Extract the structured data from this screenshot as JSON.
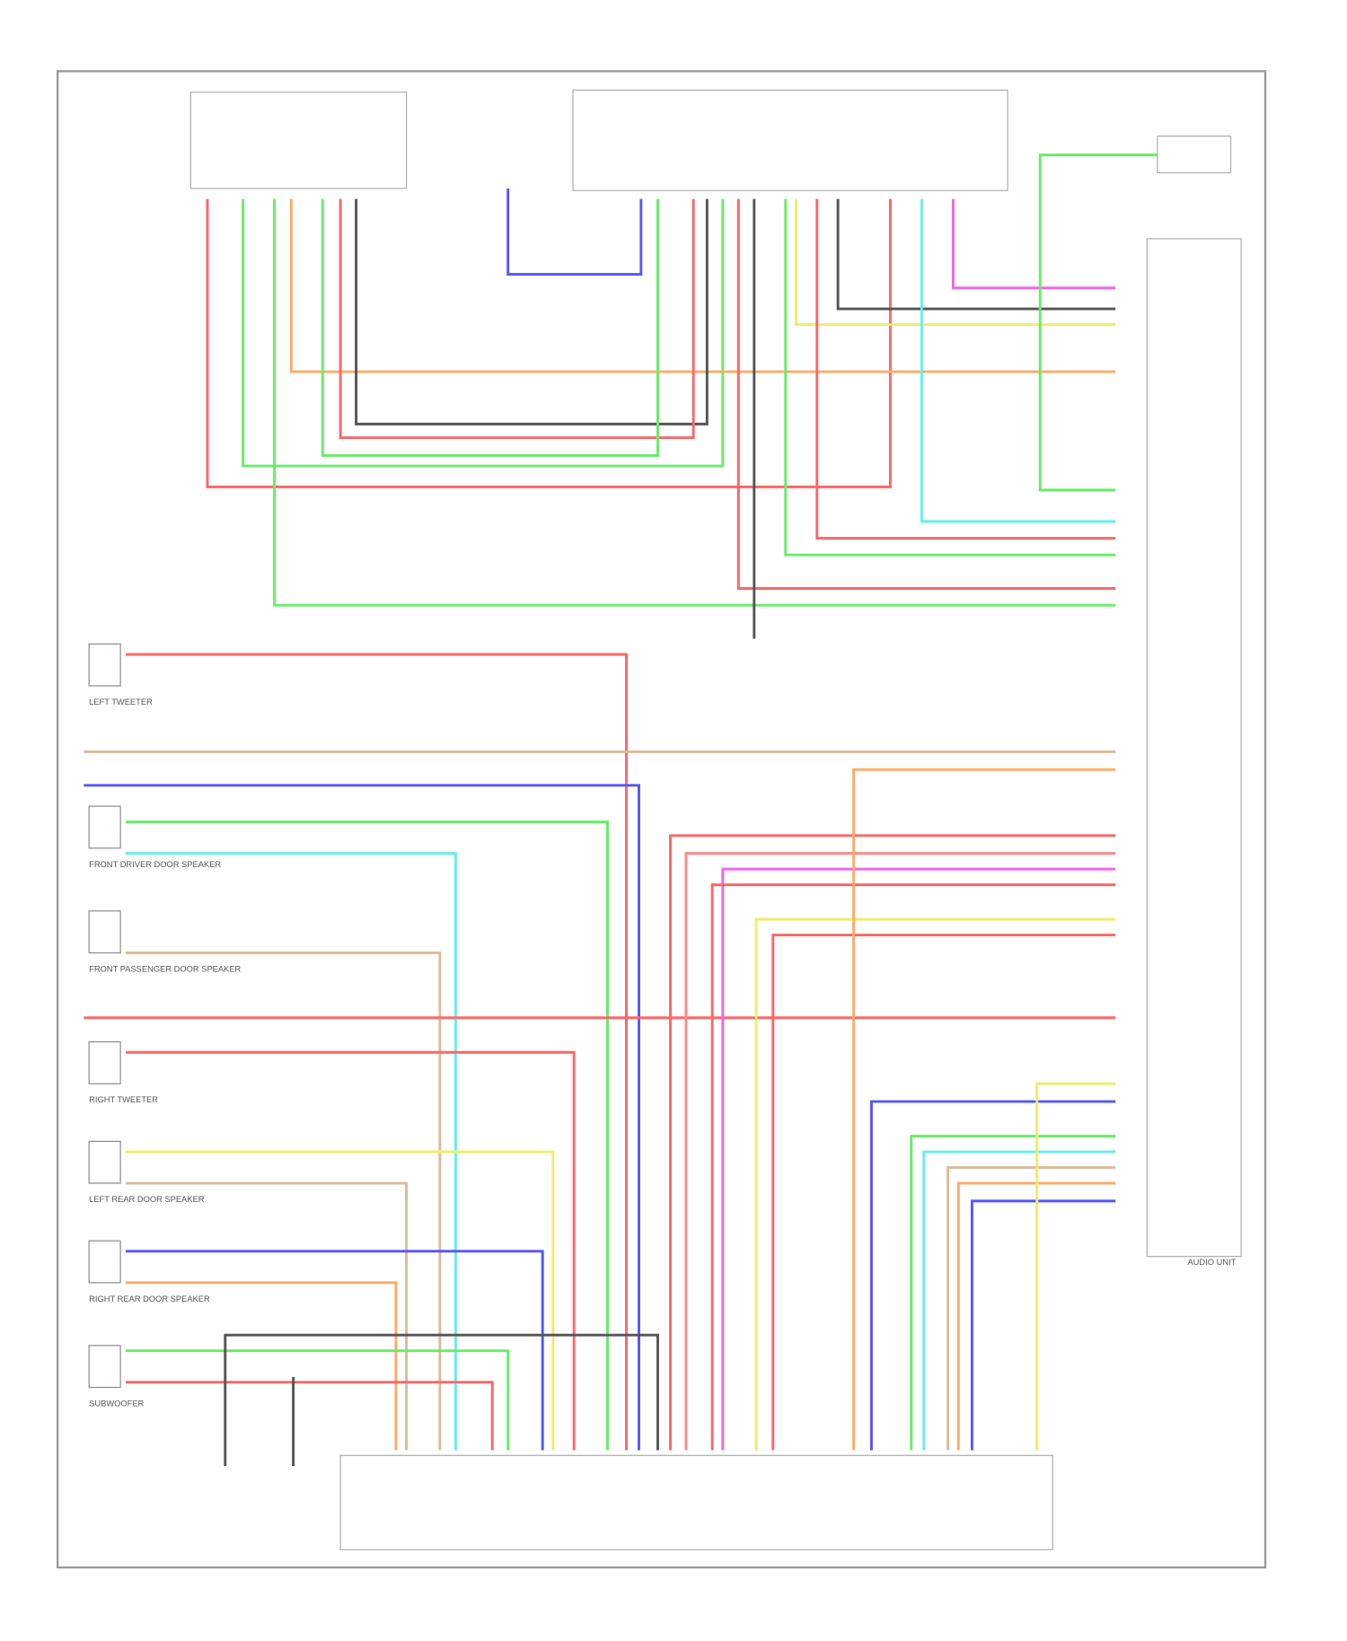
{
  "components": [
    {
      "label": "LEFT TWEETER"
    },
    {
      "label": "FRONT DRIVER DOOR SPEAKER"
    },
    {
      "label": "FRONT PASSENGER DOOR SPEAKER"
    },
    {
      "label": "RIGHT TWEETER"
    },
    {
      "label": "LEFT REAR DOOR SPEAKER"
    },
    {
      "label": "RIGHT REAR DOOR SPEAKER"
    },
    {
      "label": "SUBWOOFER"
    }
  ],
  "audio_unit": {
    "label": "AUDIO UNIT"
  }
}
